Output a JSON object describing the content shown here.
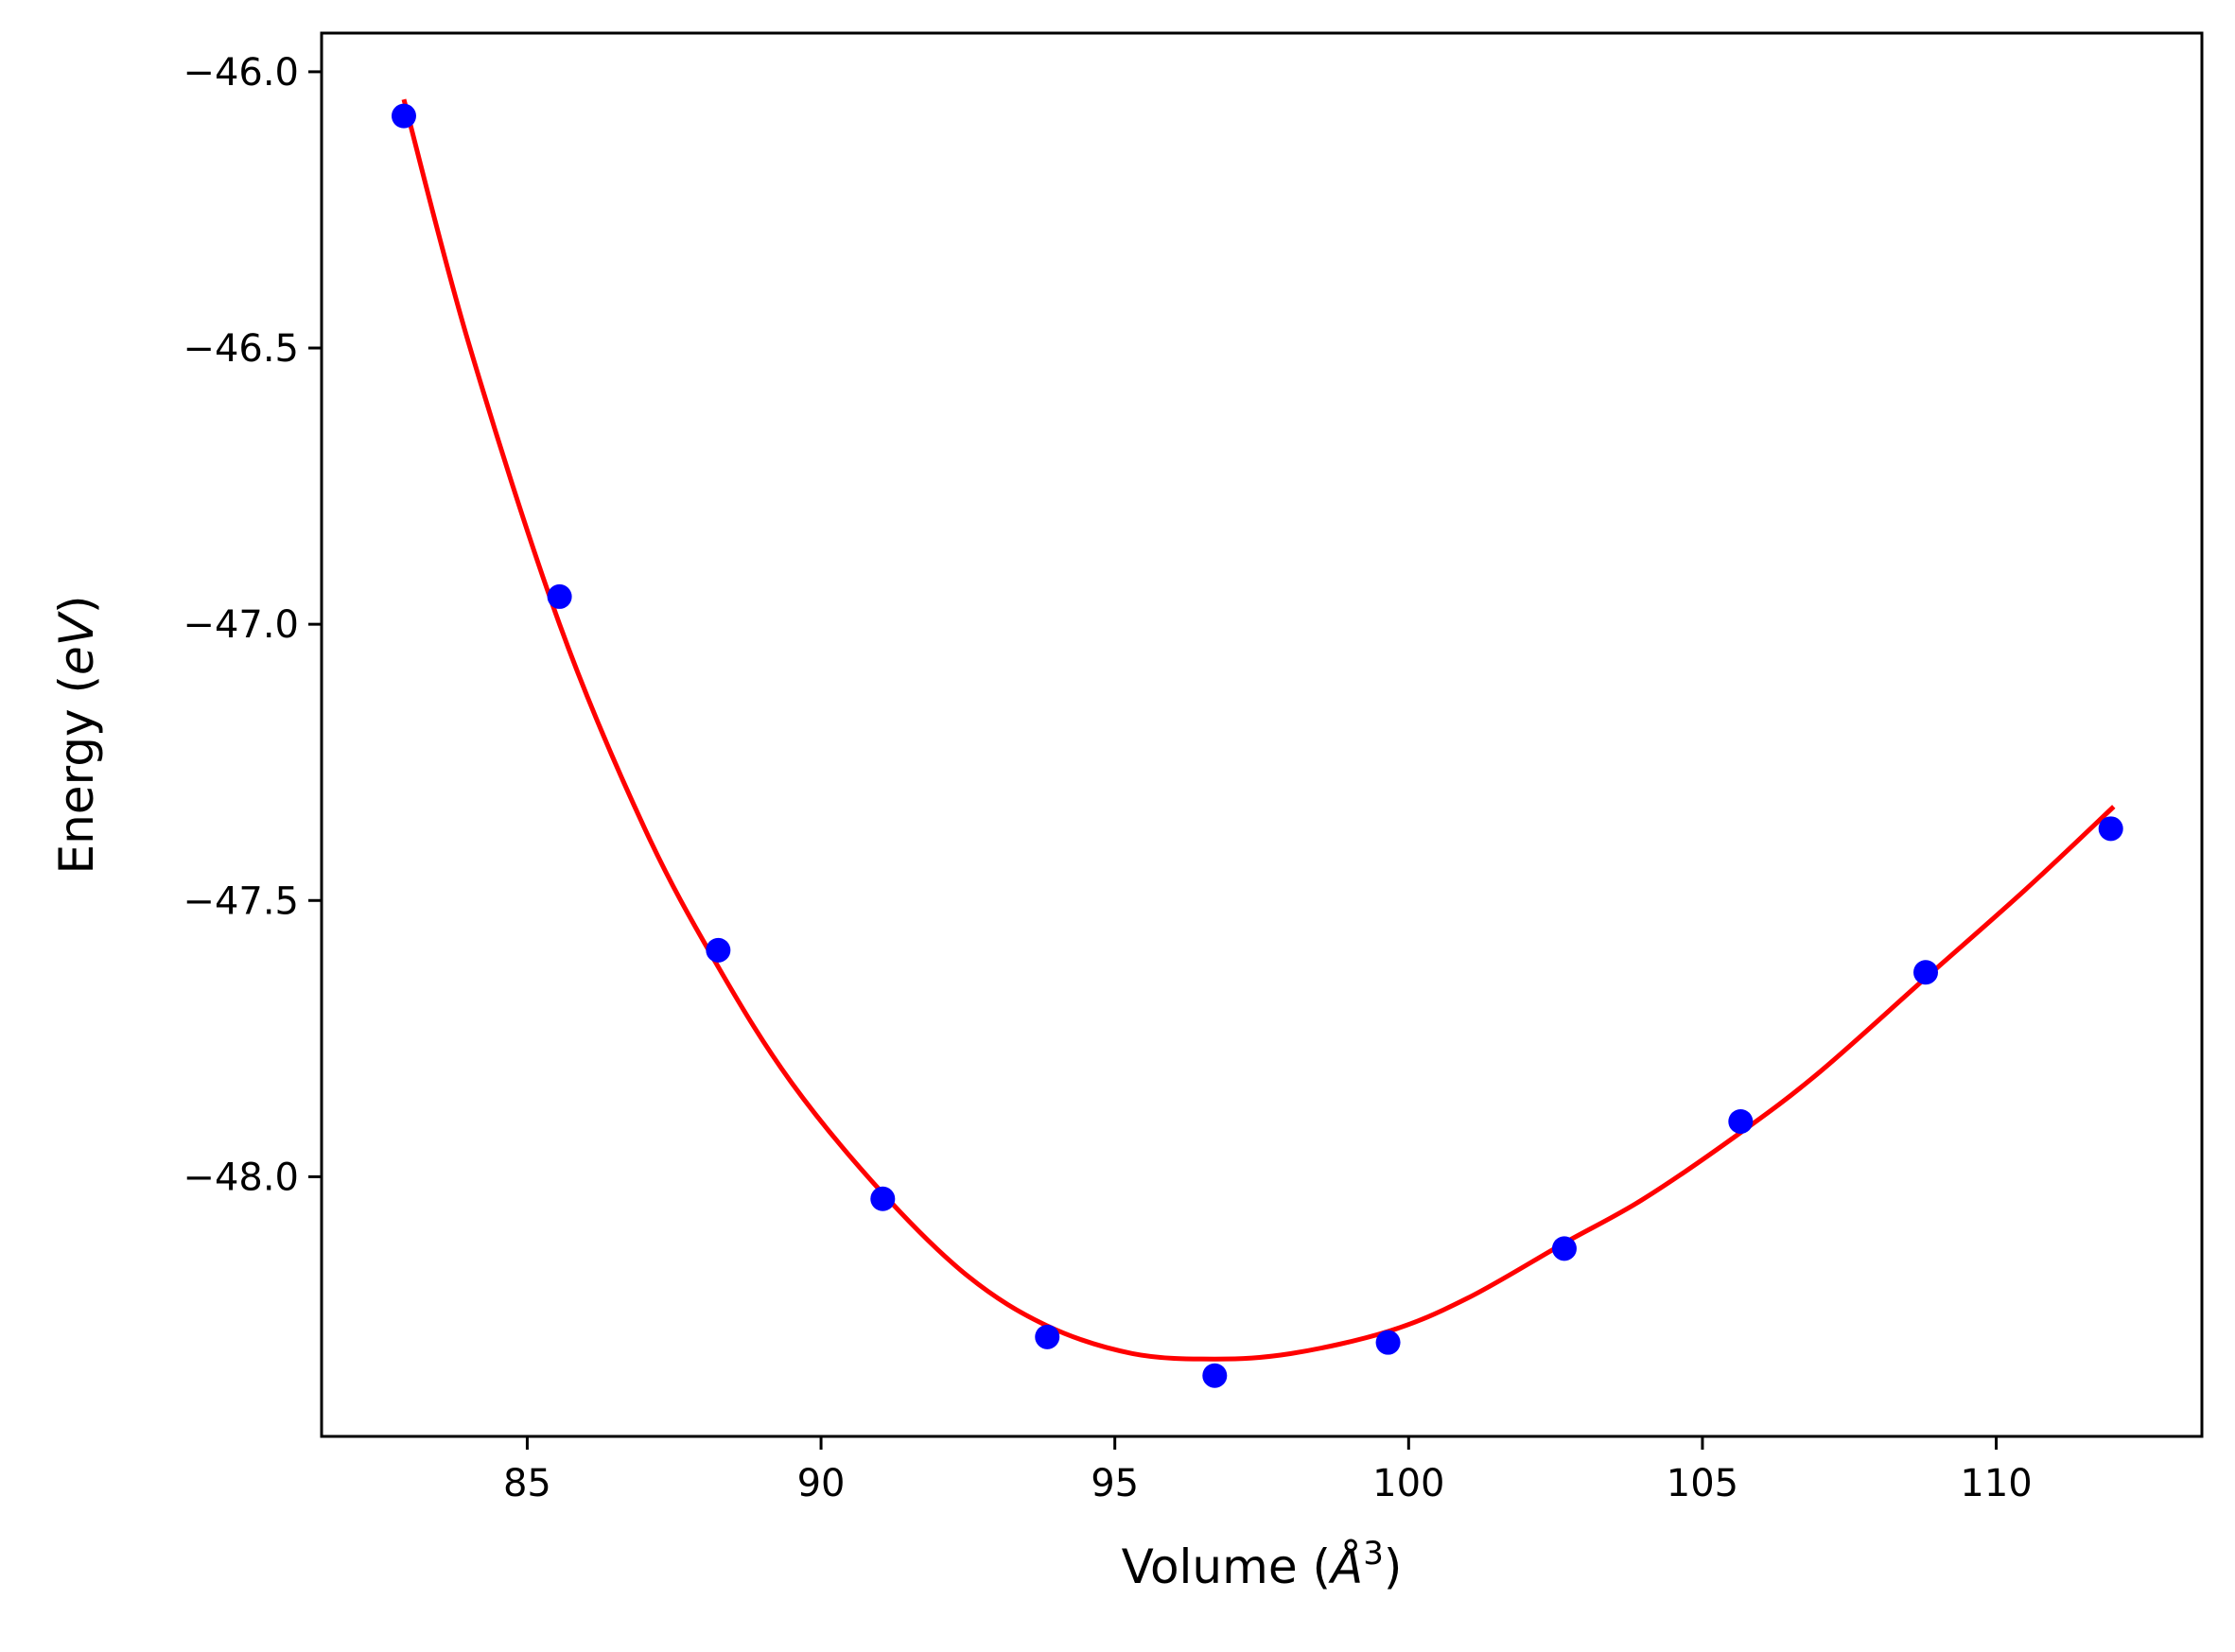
{
  "chart_data": {
    "type": "scatter",
    "title": "",
    "xlabel": {
      "prefix": "Volume (",
      "unit_letter": "Å",
      "unit_exp": "3",
      "suffix": ")"
    },
    "ylabel": {
      "prefix": "Energy (",
      "unit_italic": "eV",
      "suffix": ")"
    },
    "xlim": [
      81.5,
      113.5
    ],
    "ylim": [
      -48.47,
      -45.93
    ],
    "xticks": [
      85,
      90,
      95,
      100,
      105,
      110
    ],
    "xtick_labels": [
      "85",
      "90",
      "95",
      "100",
      "105",
      "110"
    ],
    "yticks": [
      -46.0,
      -46.5,
      -47.0,
      -47.5,
      -48.0
    ],
    "ytick_labels": [
      "−46.0",
      "−46.5",
      "−47.0",
      "−47.5",
      "−48.0"
    ],
    "grid": false,
    "legend": "none",
    "series": [
      {
        "kind": "points",
        "color": "#0000ff",
        "x": [
          82.9,
          85.55,
          88.25,
          91.05,
          93.85,
          96.7,
          99.65,
          102.65,
          105.65,
          108.8,
          111.95
        ],
        "y": [
          -46.08,
          -46.95,
          -47.59,
          -48.04,
          -48.29,
          -48.36,
          -48.3,
          -48.13,
          -47.9,
          -47.63,
          -47.37
        ]
      },
      {
        "kind": "fit-curve",
        "color": "#ff0000",
        "x": [
          82.9,
          84.0,
          85.55,
          87.0,
          88.25,
          89.5,
          91.05,
          92.5,
          93.85,
          95.3,
          96.7,
          98.0,
          99.65,
          101.0,
          102.65,
          104.0,
          105.65,
          107.0,
          108.8,
          110.5,
          112.0
        ],
        "y": [
          -46.05,
          -46.49,
          -47.0,
          -47.37,
          -47.62,
          -47.83,
          -48.03,
          -48.18,
          -48.27,
          -48.32,
          -48.33,
          -48.32,
          -48.28,
          -48.22,
          -48.12,
          -48.04,
          -47.92,
          -47.81,
          -47.64,
          -47.48,
          -47.33
        ]
      }
    ]
  }
}
